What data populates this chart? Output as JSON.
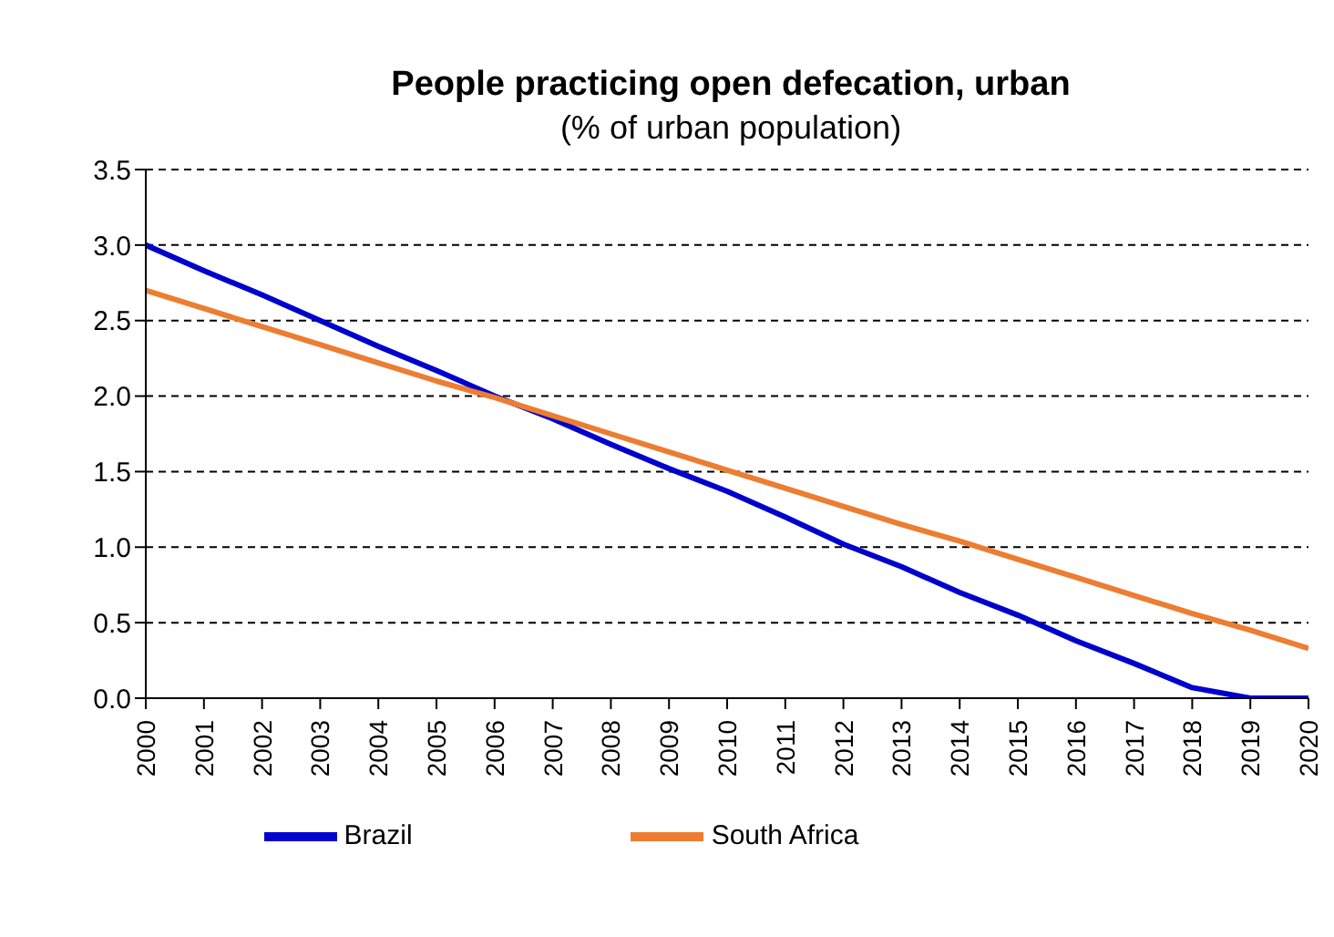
{
  "chart_data": {
    "type": "line",
    "title": "People practicing open defecation, urban",
    "subtitle": "(% of urban population)",
    "categories": [
      "2000",
      "2001",
      "2002",
      "2003",
      "2004",
      "2005",
      "2006",
      "2007",
      "2008",
      "2009",
      "2010",
      "2011",
      "2012",
      "2013",
      "2014",
      "2015",
      "2016",
      "2017",
      "2018",
      "2019",
      "2020"
    ],
    "series": [
      {
        "name": "Brazil",
        "color": "#0000cc",
        "values": [
          3.0,
          2.83,
          2.67,
          2.5,
          2.33,
          2.17,
          2.0,
          1.85,
          1.68,
          1.52,
          1.37,
          1.2,
          1.02,
          0.87,
          0.7,
          0.55,
          0.38,
          0.23,
          0.07,
          0.0,
          0.0
        ]
      },
      {
        "name": "South Africa",
        "color": "#ed7d31",
        "values": [
          2.7,
          2.58,
          2.46,
          2.34,
          2.22,
          2.1,
          1.99,
          1.87,
          1.75,
          1.63,
          1.51,
          1.39,
          1.27,
          1.15,
          1.04,
          0.92,
          0.8,
          0.68,
          0.56,
          0.45,
          0.33
        ]
      }
    ],
    "ylim": [
      0,
      3.5
    ],
    "yticks": [
      {
        "value": 0,
        "label": "0.0"
      },
      0.5,
      {
        "value": 1,
        "label": "1.0"
      },
      1.5,
      {
        "value": 2,
        "label": "2.0"
      },
      2.5,
      {
        "value": 3,
        "label": "3.0"
      },
      3.5
    ],
    "grid": "y",
    "legend": "bottom",
    "marker": "none",
    "line_style": "solid"
  }
}
